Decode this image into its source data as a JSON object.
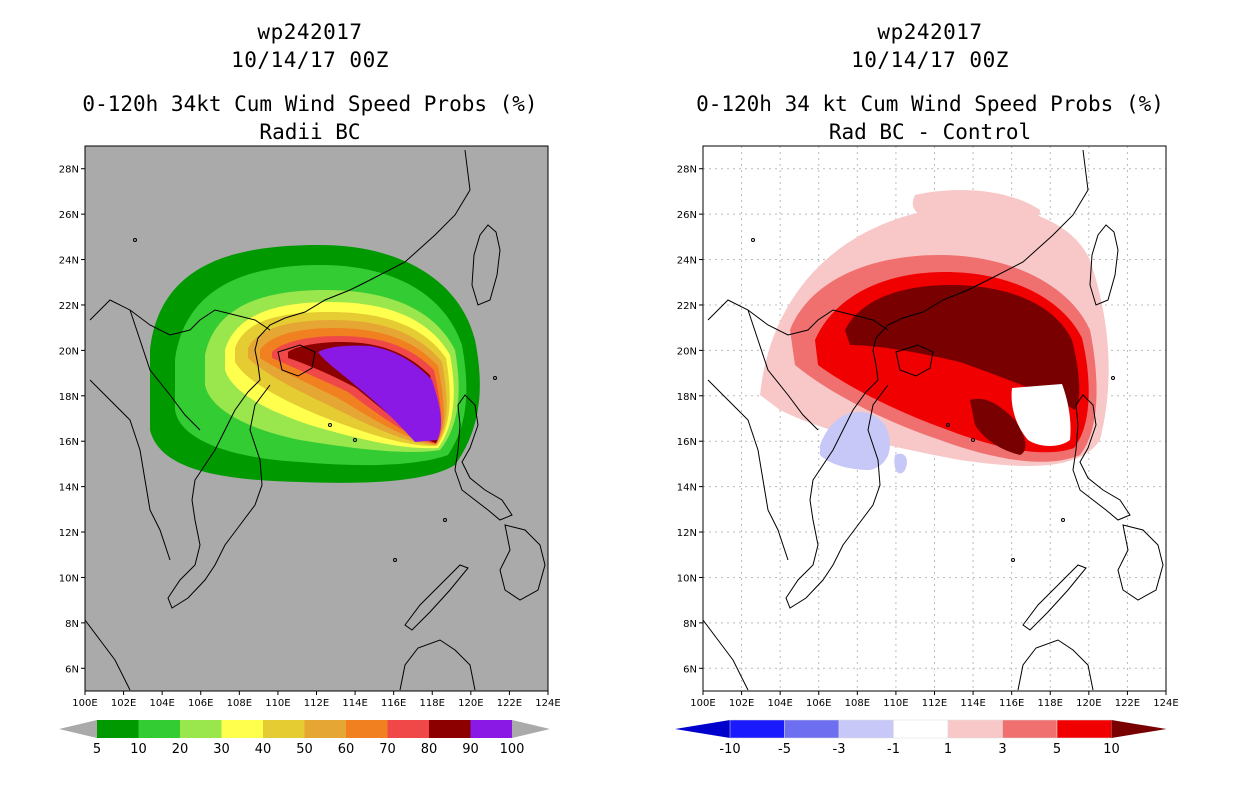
{
  "left_panel": {
    "title_line1": "wp242017",
    "title_line2": "10/14/17 00Z",
    "subtitle_line1": "0-120h 34kt Cum Wind Speed Probs (%)",
    "subtitle_line2": "Radii BC",
    "colorbar": {
      "colors": [
        "#009900",
        "#33cc33",
        "#99e64d",
        "#ffff4d",
        "#e6cc33",
        "#e6a633",
        "#f08020",
        "#f04848",
        "#8c0000",
        "#8a19e6"
      ],
      "labels": [
        "5",
        "10",
        "20",
        "30",
        "40",
        "50",
        "60",
        "70",
        "80",
        "90",
        "100"
      ]
    }
  },
  "right_panel": {
    "title_line1": "wp242017",
    "title_line2": "10/14/17 00Z",
    "subtitle_line1": "0-120h 34 kt Cum Wind Speed Probs (%)",
    "subtitle_line2": "Rad BC - Control",
    "colorbar": {
      "colors": [
        "#0000cc",
        "#1a1aff",
        "#6e6ef0",
        "#c8c8f8",
        "#ffffff",
        "#f8c8c8",
        "#f07070",
        "#f00000",
        "#780000"
      ],
      "labels": [
        "-10",
        "-5",
        "-3",
        "-1",
        "1",
        "3",
        "5",
        "10"
      ]
    }
  },
  "axes": {
    "lon_labels": [
      "100E",
      "102E",
      "104E",
      "106E",
      "108E",
      "110E",
      "112E",
      "114E",
      "116E",
      "118E",
      "120E",
      "122E",
      "124E"
    ],
    "lat_labels": [
      "6N",
      "8N",
      "10N",
      "12N",
      "14N",
      "16N",
      "18N",
      "20N",
      "22N",
      "24N",
      "26N",
      "28N"
    ]
  }
}
